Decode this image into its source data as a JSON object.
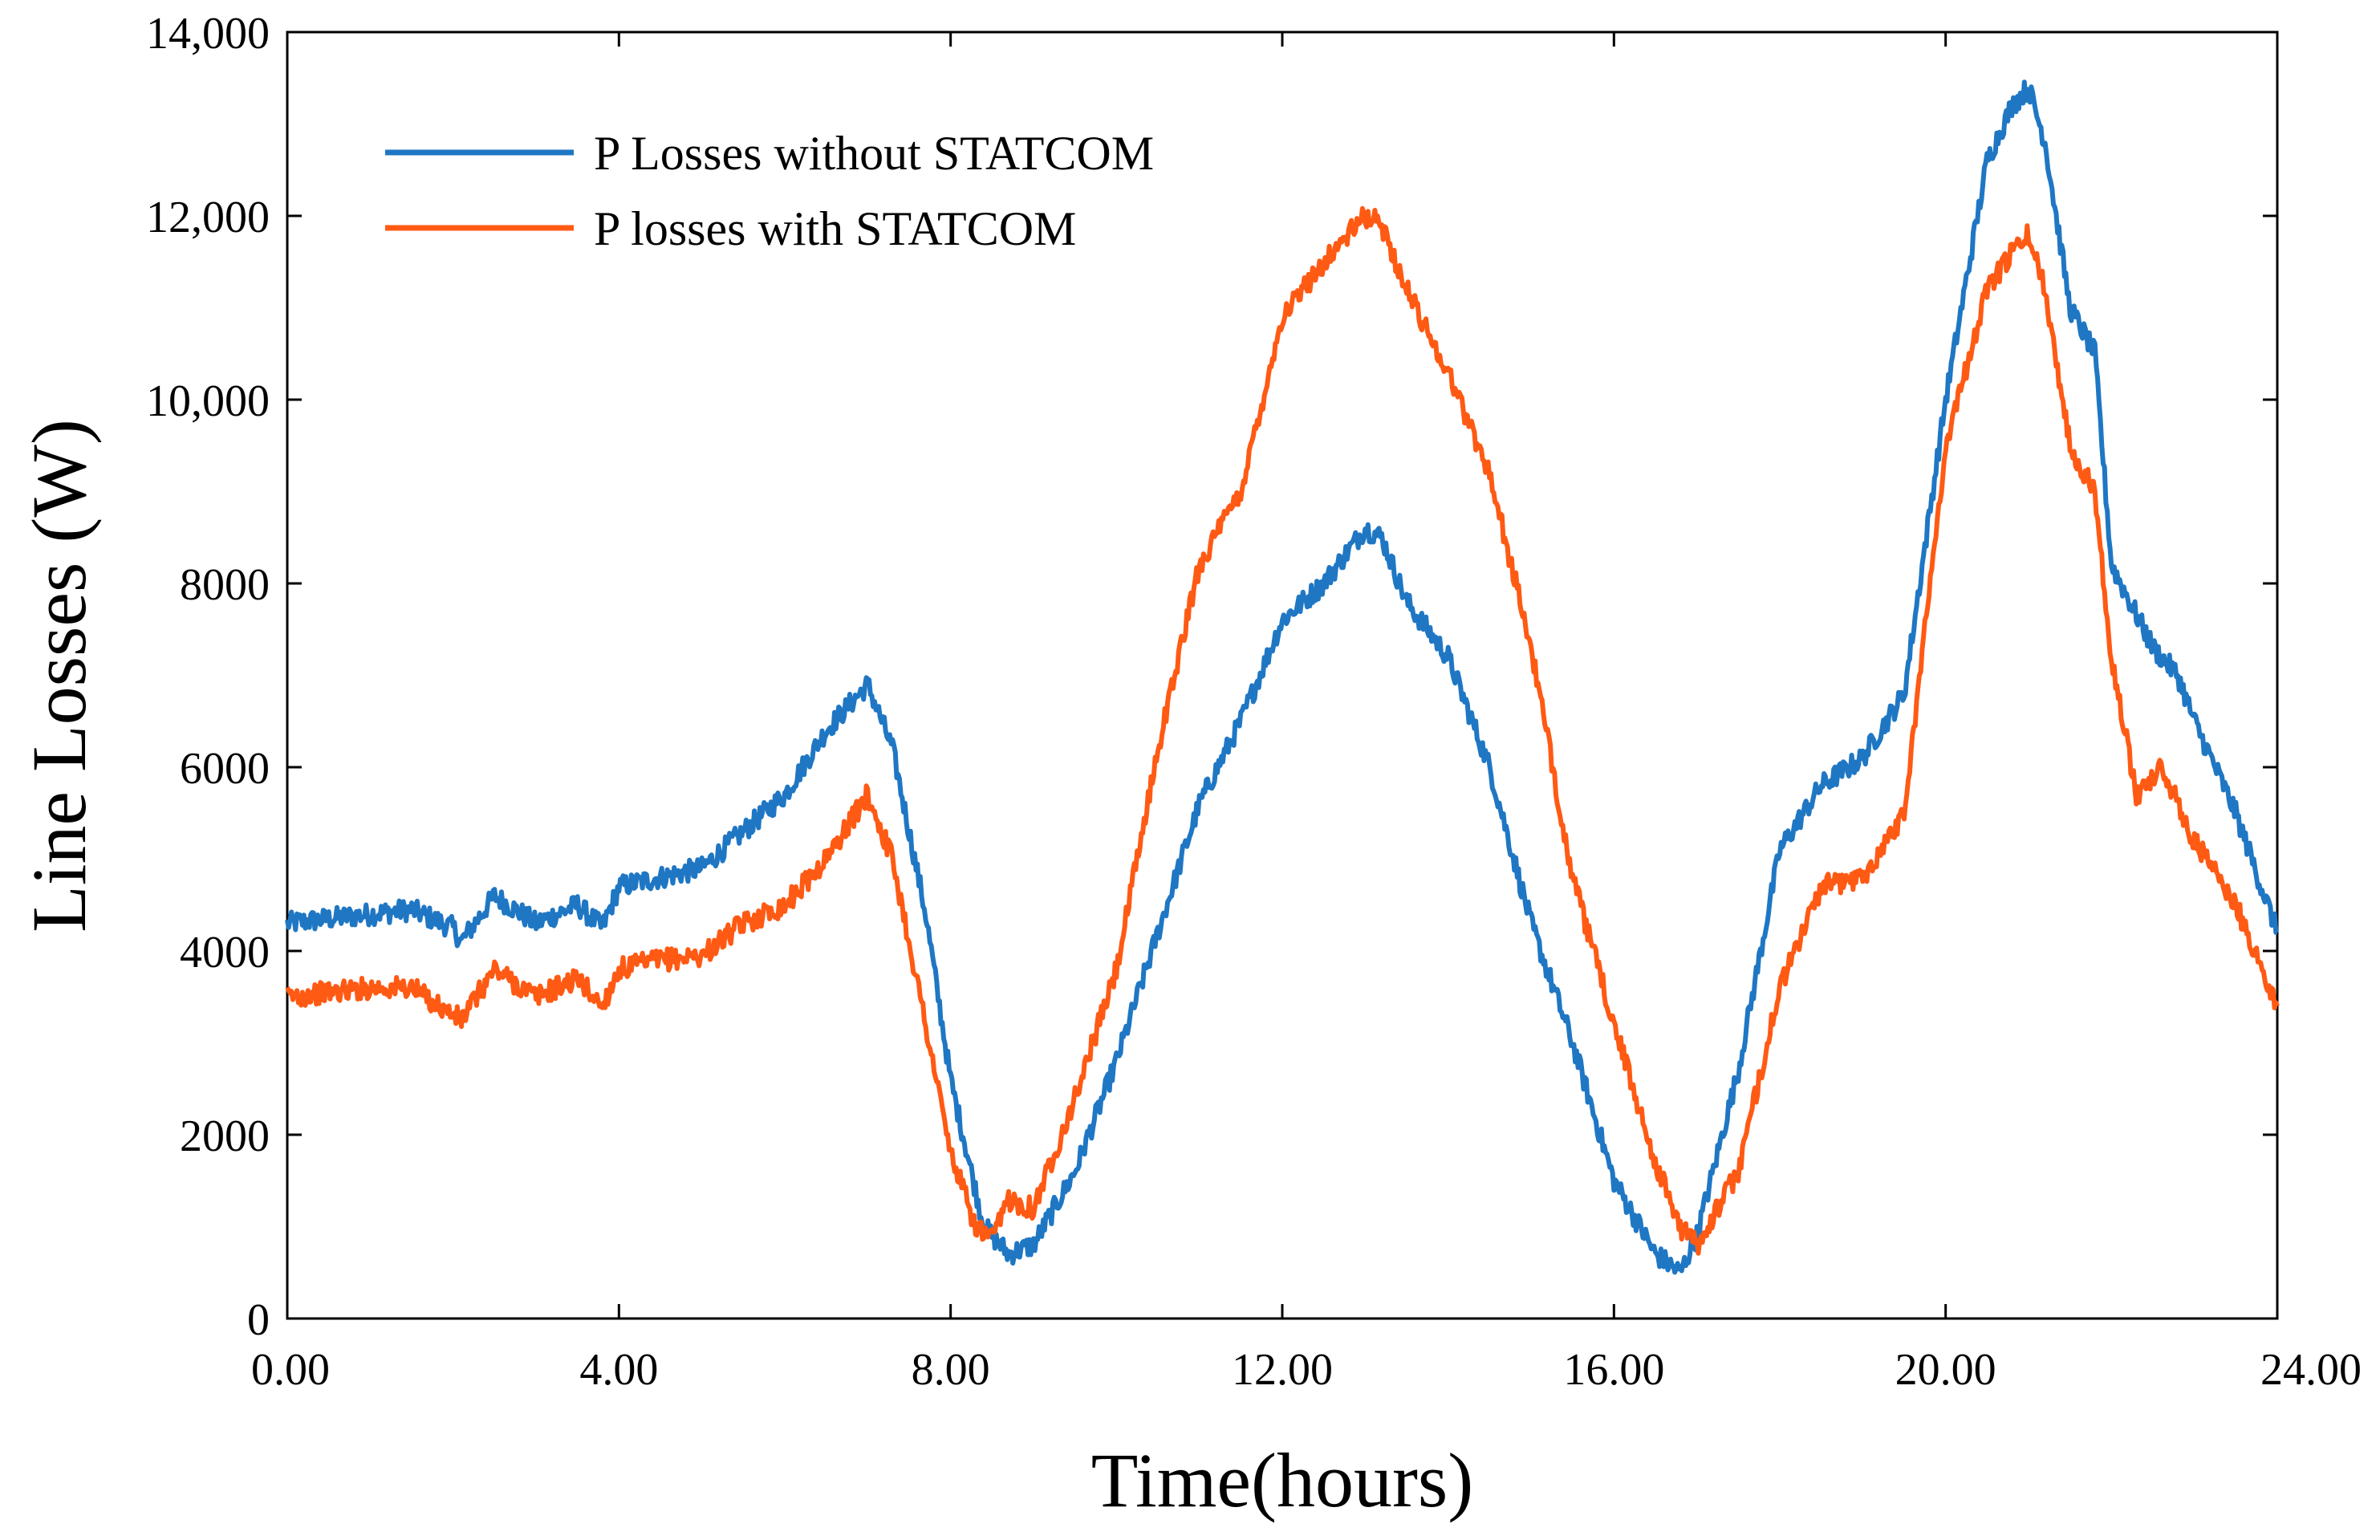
{
  "chart_data": {
    "type": "line",
    "title": "",
    "xlabel": "Time(hours)",
    "ylabel": "Line Losses (W)",
    "xlim": [
      0,
      24
    ],
    "ylim": [
      0,
      14000
    ],
    "xticks": [
      0,
      4,
      8,
      12,
      16,
      20,
      24
    ],
    "xtick_labels": [
      "0.00",
      "4.00",
      "8.00",
      "12.00",
      "16.00",
      "20.00",
      "24.00"
    ],
    "yticks": [
      0,
      2000,
      4000,
      6000,
      8000,
      10000,
      12000,
      14000
    ],
    "ytick_labels": [
      "0",
      "2000",
      "4000",
      "6000",
      "8000",
      "10,000",
      "12,000",
      "14,000"
    ],
    "legend_position": "top-left",
    "series": [
      {
        "name": "P Losses without STATCOM",
        "color": "#1f77c4",
        "x": [
          0,
          0.5,
          1,
          1.5,
          2,
          2.1,
          2.5,
          3,
          3.5,
          3.8,
          4,
          4.5,
          5,
          5.5,
          6,
          6.5,
          7,
          7.3,
          7.7,
          8,
          8.4,
          8.7,
          9,
          9.5,
          10,
          10.5,
          11,
          11.5,
          12,
          12.5,
          13,
          13.2,
          13.5,
          14,
          14.5,
          15,
          15.5,
          16,
          16.5,
          16.8,
          17,
          17.5,
          18,
          18.5,
          19,
          19.5,
          20,
          20.5,
          20.8,
          21,
          21.2,
          21.5,
          21.8,
          22,
          22.5,
          22.8,
          23,
          23.5,
          24
        ],
        "y": [
          4300,
          4350,
          4400,
          4450,
          4250,
          4100,
          4600,
          4300,
          4500,
          4250,
          4700,
          4800,
          4900,
          5300,
          5700,
          6400,
          6900,
          6200,
          4400,
          2600,
          1000,
          700,
          800,
          1600,
          2800,
          4200,
          5600,
          6500,
          7600,
          8000,
          8600,
          8500,
          7800,
          7200,
          6000,
          4300,
          3000,
          1500,
          700,
          500,
          900,
          2700,
          5100,
          5800,
          6100,
          6800,
          10000,
          12600,
          13200,
          13400,
          12800,
          11000,
          10500,
          8200,
          7300,
          7000,
          6500,
          5500,
          4200
        ]
      },
      {
        "name": "P losses with STATCOM",
        "color": "#ff5a14",
        "x": [
          0,
          0.5,
          1,
          1.5,
          2,
          2.1,
          2.5,
          3,
          3.5,
          3.8,
          4,
          4.5,
          5,
          5.5,
          6,
          6.5,
          7,
          7.3,
          7.7,
          8,
          8.3,
          8.5,
          8.7,
          9,
          9.5,
          10,
          10.5,
          11,
          11.5,
          12,
          12.5,
          13,
          13.2,
          13.5,
          14,
          14.5,
          15,
          15.5,
          16,
          16.5,
          16.8,
          17,
          17.5,
          18,
          18.5,
          19,
          19.5,
          20,
          20.5,
          20.8,
          21,
          21.2,
          21.5,
          21.8,
          22,
          22.3,
          22.6,
          23,
          23.5,
          24
        ],
        "y": [
          3500,
          3550,
          3600,
          3600,
          3300,
          3250,
          3800,
          3500,
          3700,
          3400,
          3800,
          3900,
          3950,
          4300,
          4500,
          5000,
          5700,
          5000,
          3200,
          1800,
          1000,
          850,
          1300,
          1200,
          2400,
          3800,
          6200,
          8200,
          9000,
          10900,
          11500,
          12000,
          11900,
          11200,
          10300,
          9200,
          7300,
          4800,
          3200,
          1700,
          1000,
          800,
          1600,
          3600,
          4700,
          4800,
          5500,
          9500,
          11200,
          11600,
          11800,
          11200,
          9500,
          9000,
          7200,
          5700,
          6000,
          5200,
          4500,
          3400
        ]
      }
    ]
  }
}
